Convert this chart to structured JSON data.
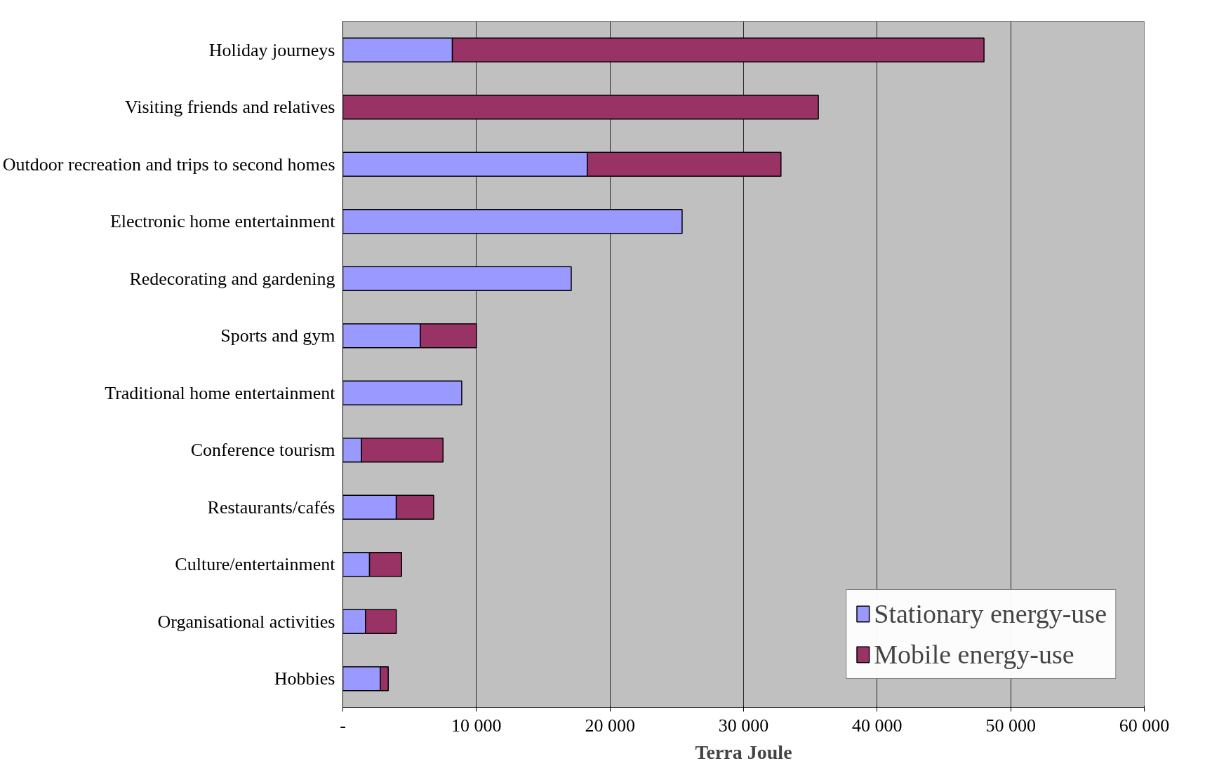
{
  "chart_data": {
    "type": "bar",
    "orientation": "horizontal",
    "stacked": true,
    "xlabel": "Terra Joule",
    "categories": [
      "Holiday journeys",
      "Visiting friends and relatives",
      "Outdoor recreation and trips to second homes",
      "Electronic home entertainment",
      "Redecorating and gardening",
      "Sports and gym",
      "Traditional home entertainment",
      "Conference tourism",
      "Restaurants/cafés",
      "Culture/entertainment",
      "Organisational activities",
      "Hobbies"
    ],
    "series": [
      {
        "name": "Stationary energy-use",
        "color": "#9999ff",
        "values": [
          8200,
          null,
          18300,
          25400,
          17100,
          5800,
          8900,
          1400,
          4000,
          2000,
          1700,
          2800
        ]
      },
      {
        "name": "Mobile energy-use",
        "color": "#993366",
        "values": [
          39800,
          35600,
          14500,
          null,
          null,
          4200,
          null,
          6100,
          2800,
          2400,
          2300,
          600
        ]
      }
    ],
    "xlim": [
      0,
      60000
    ],
    "xticks": [
      {
        "value": 0,
        "label": "-"
      },
      {
        "value": 10000,
        "label": "10 000"
      },
      {
        "value": 20000,
        "label": "20 000"
      },
      {
        "value": 30000,
        "label": "30 000"
      },
      {
        "value": 40000,
        "label": "40 000"
      },
      {
        "value": 50000,
        "label": "50 000"
      },
      {
        "value": 60000,
        "label": "60 000"
      }
    ],
    "grid": "x",
    "legend": "bottom right"
  }
}
